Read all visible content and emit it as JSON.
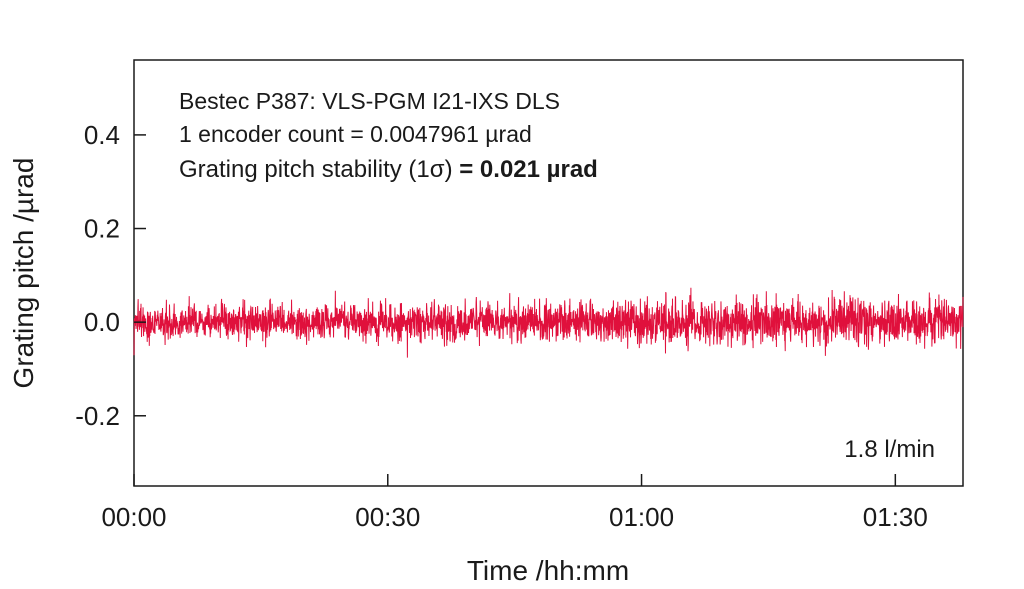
{
  "chart_data": {
    "type": "line",
    "xlabel": "Time /hh:mm",
    "ylabel": "Grating pitch /µrad",
    "x_tick_labels": [
      "00:00",
      "00:30",
      "01:00",
      "01:30"
    ],
    "x_tick_minutes": [
      0,
      30,
      60,
      90
    ],
    "xlim_minutes": [
      0,
      98
    ],
    "y_ticks": [
      -0.2,
      0.0,
      0.2,
      0.4
    ],
    "y_tick_labels": [
      "-0.2",
      "0.0",
      "0.2",
      "0.4"
    ],
    "ylim": [
      -0.35,
      0.56
    ],
    "grid": false,
    "annotations": {
      "line1": "Bestec P387: VLS-PGM I21-IXS DLS",
      "line2": "1 encoder count = 0.0047961 µrad",
      "line3_prefix": "Grating pitch stability (1σ)",
      "line3_value": " = 0.021 µrad",
      "condition": "1.8 l/min"
    },
    "series": [
      {
        "color": "#e0103c",
        "mean": 0.0,
        "std": 0.021,
        "approx_min": -0.09,
        "approx_max": 0.11
      }
    ]
  }
}
